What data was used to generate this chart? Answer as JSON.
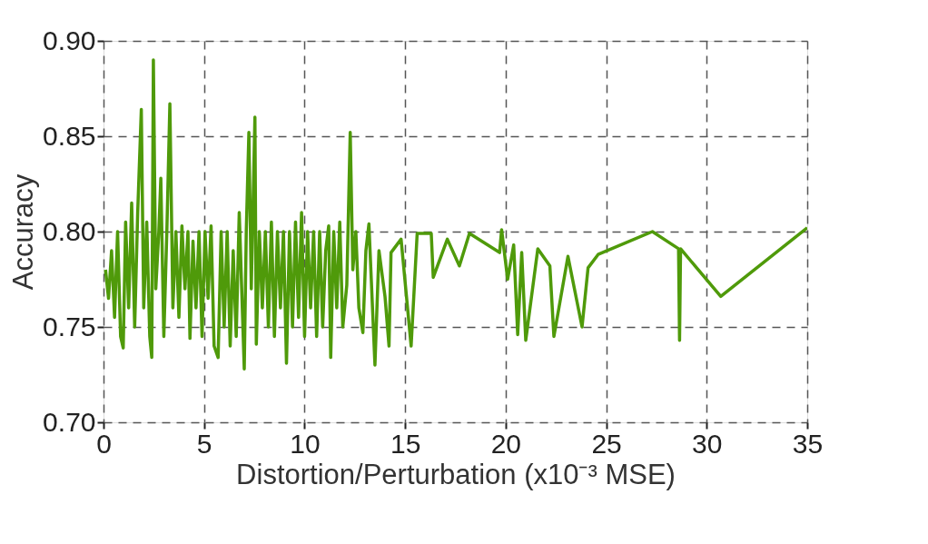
{
  "chart_data": {
    "type": "line",
    "xlabel": "Distortion/Perturbation (x10⁻³ MSE)",
    "ylabel": "Accuracy",
    "xlim": [
      0,
      35
    ],
    "xticks": [
      0,
      5,
      10,
      15,
      20,
      25,
      30,
      35
    ],
    "ylim": [
      0.7,
      0.9
    ],
    "yticks": [
      {
        "value": 0.7,
        "label": "0.70"
      },
      {
        "value": 0.75,
        "label": "0.75"
      },
      {
        "value": 0.8,
        "label": "0.80"
      },
      {
        "value": 0.85,
        "label": "0.85"
      },
      {
        "value": 0.9,
        "label": "0.90"
      }
    ],
    "grid": true,
    "marker": "none",
    "line_style": "solid",
    "series": [
      {
        "color": "#4f9a0a",
        "x": [
          0.1,
          0.25,
          0.4,
          0.55,
          0.7,
          0.85,
          0.98,
          1.1,
          1.25,
          1.4,
          1.55,
          1.7,
          1.88,
          2.0,
          2.15,
          2.3,
          2.4,
          2.48,
          2.6,
          2.75,
          2.85,
          3.0,
          3.15,
          3.3,
          3.45,
          3.6,
          3.75,
          3.9,
          4.05,
          4.2,
          4.3,
          4.45,
          4.6,
          4.75,
          4.9,
          5.05,
          5.2,
          5.35,
          5.5,
          5.7,
          5.85,
          6.0,
          6.15,
          6.3,
          6.45,
          6.6,
          6.75,
          7.0,
          7.1,
          7.23,
          7.35,
          7.53,
          7.6,
          7.75,
          7.9,
          8.05,
          8.2,
          8.35,
          8.5,
          8.65,
          8.8,
          8.95,
          9.1,
          9.25,
          9.4,
          9.55,
          9.7,
          9.85,
          10.0,
          10.15,
          10.3,
          10.45,
          10.6,
          10.75,
          10.9,
          11.05,
          11.2,
          11.3,
          11.45,
          11.6,
          11.75,
          11.9,
          12.1,
          12.27,
          12.4,
          12.55,
          12.7,
          12.9,
          13.05,
          13.2,
          13.5,
          13.7,
          14.0,
          14.2,
          14.3,
          14.8,
          15.3,
          15.6,
          16.3,
          16.4,
          17.1,
          17.7,
          18.2,
          19.7,
          19.8,
          20.1,
          20.4,
          20.6,
          20.8,
          21.0,
          21.6,
          22.2,
          22.4,
          23.1,
          23.8,
          24.1,
          24.6,
          27.3,
          28.6,
          28.65,
          28.7,
          30.7,
          35.0
        ],
        "values": [
          0.78,
          0.765,
          0.79,
          0.755,
          0.8,
          0.745,
          0.739,
          0.805,
          0.76,
          0.815,
          0.75,
          0.81,
          0.864,
          0.76,
          0.805,
          0.745,
          0.734,
          0.89,
          0.77,
          0.8,
          0.828,
          0.745,
          0.8,
          0.867,
          0.76,
          0.8,
          0.755,
          0.803,
          0.77,
          0.8,
          0.744,
          0.795,
          0.76,
          0.8,
          0.745,
          0.8,
          0.765,
          0.803,
          0.74,
          0.734,
          0.8,
          0.75,
          0.8,
          0.74,
          0.79,
          0.745,
          0.81,
          0.728,
          0.8,
          0.852,
          0.77,
          0.86,
          0.741,
          0.8,
          0.76,
          0.8,
          0.75,
          0.805,
          0.745,
          0.8,
          0.76,
          0.8,
          0.731,
          0.8,
          0.75,
          0.805,
          0.755,
          0.81,
          0.745,
          0.8,
          0.76,
          0.8,
          0.745,
          0.8,
          0.75,
          0.79,
          0.803,
          0.734,
          0.8,
          0.76,
          0.805,
          0.75,
          0.772,
          0.852,
          0.78,
          0.8,
          0.76,
          0.747,
          0.79,
          0.804,
          0.73,
          0.79,
          0.766,
          0.74,
          0.789,
          0.796,
          0.74,
          0.799,
          0.799,
          0.776,
          0.796,
          0.782,
          0.799,
          0.789,
          0.801,
          0.775,
          0.793,
          0.746,
          0.789,
          0.743,
          0.791,
          0.782,
          0.745,
          0.787,
          0.75,
          0.781,
          0.788,
          0.8,
          0.791,
          0.743,
          0.791,
          0.766,
          0.802
        ]
      }
    ]
  }
}
